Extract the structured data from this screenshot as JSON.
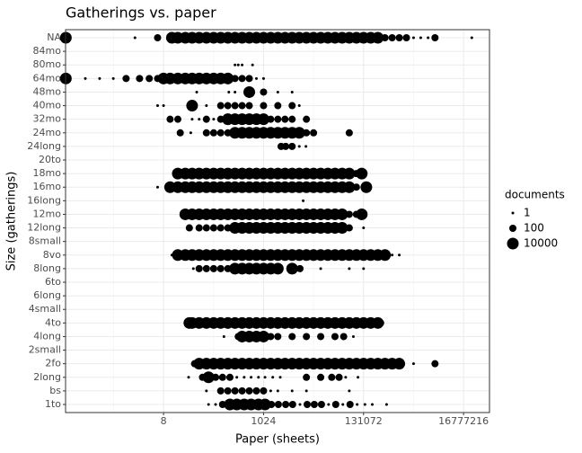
{
  "chart_data": {
    "type": "dotplot",
    "title": "Gatherings vs. paper",
    "x_label": "Paper (sheets)",
    "y_label": "Size (gatherings)",
    "xlim": [
      0.069,
      59000000
    ],
    "xticks": [
      8,
      1024,
      131072,
      16777216
    ],
    "log_x": true,
    "grid": true,
    "color": "#000000",
    "size_legend": {
      "title": "documents",
      "values": [
        1,
        100,
        10000
      ]
    },
    "rows": [
      {
        "category": "NA",
        "x": [
          0.07,
          2,
          6,
          12,
          16,
          23,
          32,
          45,
          64,
          91,
          128,
          181,
          256,
          362,
          512,
          724,
          1024,
          1448,
          2048,
          2896,
          4096,
          5793,
          8192,
          11585,
          16384,
          23170,
          32768,
          46341,
          65536,
          92682,
          131072,
          185364,
          262144,
          370728,
          524288,
          741455,
          1048576,
          1482910,
          2097152,
          3000000,
          4194304,
          25000000
        ],
        "documents": [
          10000,
          1,
          100,
          10000,
          10000,
          10000,
          10000,
          10000,
          10000,
          10000,
          10000,
          10000,
          10000,
          10000,
          10000,
          10000,
          10000,
          10000,
          10000,
          10000,
          10000,
          10000,
          10000,
          10000,
          10000,
          10000,
          10000,
          10000,
          10000,
          10000,
          10000,
          10000,
          10000,
          100,
          100,
          100,
          100,
          1,
          1,
          1,
          100,
          1
        ]
      },
      {
        "category": "84mo",
        "x": [],
        "documents": []
      },
      {
        "category": "80mo",
        "x": [
          256,
          300,
          362,
          600
        ],
        "documents": [
          1,
          1,
          1,
          1
        ]
      },
      {
        "category": "64mo",
        "x": [
          0.07,
          0.18,
          0.36,
          0.7,
          1.3,
          2.5,
          4,
          6,
          8,
          11,
          16,
          23,
          32,
          45,
          64,
          91,
          128,
          181,
          256,
          362,
          512,
          724,
          1024
        ],
        "documents": [
          10000,
          1,
          1,
          1,
          100,
          100,
          100,
          100,
          10000,
          10000,
          10000,
          10000,
          10000,
          10000,
          10000,
          10000,
          10000,
          10000,
          100,
          100,
          100,
          1,
          1
        ]
      },
      {
        "category": "48mo",
        "x": [
          40,
          190,
          256,
          512,
          1024,
          2048,
          4096
        ],
        "documents": [
          1,
          1,
          1,
          10000,
          100,
          1,
          1
        ]
      },
      {
        "category": "40mo",
        "x": [
          6,
          8,
          32,
          64,
          128,
          181,
          256,
          362,
          512,
          1024,
          2048,
          4096,
          5793
        ],
        "documents": [
          1,
          1,
          10000,
          1,
          100,
          100,
          100,
          100,
          100,
          100,
          100,
          100,
          1
        ]
      },
      {
        "category": "32mo",
        "x": [
          11,
          16,
          32,
          45,
          64,
          91,
          128,
          181,
          256,
          362,
          512,
          724,
          1024,
          1448,
          2048,
          2896,
          4096,
          8192
        ],
        "documents": [
          100,
          100,
          1,
          1,
          100,
          1,
          100,
          10000,
          10000,
          10000,
          10000,
          10000,
          10000,
          100,
          100,
          100,
          100,
          100
        ]
      },
      {
        "category": "24mo",
        "x": [
          18,
          30,
          64,
          91,
          128,
          181,
          256,
          362,
          512,
          724,
          1024,
          1448,
          2048,
          2896,
          4096,
          5793,
          8192,
          11585,
          65536
        ],
        "documents": [
          100,
          1,
          100,
          100,
          100,
          100,
          10000,
          10000,
          10000,
          10000,
          10000,
          10000,
          10000,
          10000,
          10000,
          10000,
          100,
          100,
          100
        ]
      },
      {
        "category": "24long",
        "x": [
          2400,
          3000,
          4096,
          5793,
          8000
        ],
        "documents": [
          100,
          100,
          100,
          1,
          1
        ]
      },
      {
        "category": "20to",
        "x": [],
        "documents": []
      },
      {
        "category": "18mo",
        "x": [
          16,
          23,
          32,
          45,
          64,
          91,
          128,
          181,
          256,
          362,
          512,
          724,
          1024,
          1448,
          2048,
          2896,
          4096,
          5793,
          8192,
          11585,
          16384,
          23170,
          32768,
          46341,
          65536,
          92682,
          120000
        ],
        "documents": [
          10000,
          10000,
          10000,
          10000,
          10000,
          10000,
          10000,
          10000,
          10000,
          10000,
          10000,
          10000,
          10000,
          10000,
          10000,
          10000,
          10000,
          10000,
          10000,
          10000,
          10000,
          10000,
          10000,
          10000,
          10000,
          100,
          10000
        ]
      },
      {
        "category": "16mo",
        "x": [
          6,
          11,
          16,
          23,
          32,
          45,
          64,
          91,
          128,
          181,
          256,
          362,
          512,
          724,
          1024,
          1448,
          2048,
          2896,
          4096,
          5793,
          8192,
          11585,
          16384,
          23170,
          32768,
          46341,
          65536,
          92682,
          150000
        ],
        "documents": [
          1,
          10000,
          10000,
          10000,
          10000,
          10000,
          10000,
          10000,
          10000,
          10000,
          10000,
          10000,
          10000,
          10000,
          10000,
          10000,
          10000,
          10000,
          10000,
          10000,
          10000,
          10000,
          10000,
          10000,
          10000,
          10000,
          10000,
          100,
          10000
        ]
      },
      {
        "category": "16long",
        "x": [
          7000
        ],
        "documents": [
          1
        ]
      },
      {
        "category": "12mo",
        "x": [
          23,
          32,
          45,
          64,
          91,
          128,
          181,
          256,
          362,
          512,
          724,
          1024,
          1448,
          2048,
          2896,
          4096,
          5793,
          8192,
          11585,
          16384,
          23170,
          32768,
          46341,
          65536,
          92682,
          120000
        ],
        "documents": [
          10000,
          10000,
          10000,
          10000,
          10000,
          10000,
          10000,
          10000,
          10000,
          10000,
          10000,
          10000,
          10000,
          10000,
          10000,
          10000,
          10000,
          10000,
          10000,
          10000,
          10000,
          10000,
          10000,
          100,
          100,
          10000
        ]
      },
      {
        "category": "12long",
        "x": [
          28,
          45,
          64,
          91,
          128,
          181,
          256,
          362,
          512,
          724,
          1024,
          1448,
          2048,
          2896,
          4096,
          5793,
          8192,
          11585,
          16384,
          23170,
          32768,
          46341,
          65536,
          131072
        ],
        "documents": [
          100,
          100,
          100,
          100,
          100,
          100,
          10000,
          10000,
          10000,
          10000,
          10000,
          10000,
          10000,
          10000,
          10000,
          10000,
          10000,
          10000,
          10000,
          10000,
          10000,
          10000,
          100,
          1
        ]
      },
      {
        "category": "8small",
        "x": [],
        "documents": []
      },
      {
        "category": "8vo",
        "x": [
          12,
          16,
          23,
          32,
          45,
          64,
          91,
          128,
          181,
          256,
          362,
          512,
          724,
          1024,
          1448,
          2048,
          2896,
          4096,
          5793,
          8192,
          11585,
          16384,
          23170,
          32768,
          46341,
          65536,
          92682,
          131072,
          185364,
          262144,
          370728,
          524288,
          741455
        ],
        "documents": [
          1,
          10000,
          10000,
          10000,
          10000,
          10000,
          10000,
          10000,
          10000,
          10000,
          10000,
          10000,
          10000,
          10000,
          10000,
          10000,
          10000,
          10000,
          10000,
          10000,
          10000,
          10000,
          10000,
          10000,
          10000,
          10000,
          10000,
          10000,
          10000,
          10000,
          10000,
          1,
          1
        ]
      },
      {
        "category": "8long",
        "x": [
          34,
          45,
          64,
          91,
          128,
          181,
          256,
          362,
          512,
          724,
          1024,
          1448,
          2048,
          4096,
          6000,
          16384,
          65536,
          131072
        ],
        "documents": [
          1,
          100,
          100,
          100,
          100,
          100,
          10000,
          10000,
          10000,
          10000,
          10000,
          10000,
          10000,
          10000,
          100,
          1,
          1,
          1
        ]
      },
      {
        "category": "6to",
        "x": [],
        "documents": []
      },
      {
        "category": "6long",
        "x": [],
        "documents": []
      },
      {
        "category": "4small",
        "x": [],
        "documents": []
      },
      {
        "category": "4to",
        "x": [
          28,
          32,
          45,
          64,
          91,
          128,
          181,
          256,
          362,
          512,
          724,
          1024,
          1448,
          2048,
          2896,
          4096,
          5793,
          8192,
          11585,
          16384,
          23170,
          32768,
          46341,
          65536,
          92682,
          131072,
          185364,
          262144,
          300000
        ],
        "documents": [
          10000,
          10000,
          10000,
          10000,
          10000,
          10000,
          10000,
          10000,
          10000,
          10000,
          10000,
          10000,
          10000,
          10000,
          10000,
          10000,
          10000,
          10000,
          10000,
          10000,
          10000,
          10000,
          10000,
          10000,
          10000,
          10000,
          10000,
          10000,
          100
        ]
      },
      {
        "category": "4long",
        "x": [
          150,
          300,
          362,
          512,
          724,
          1024,
          1448,
          2048,
          4096,
          8192,
          16384,
          32768,
          50000,
          80000
        ],
        "documents": [
          1,
          100,
          10000,
          10000,
          10000,
          10000,
          100,
          100,
          100,
          100,
          100,
          100,
          100,
          1
        ]
      },
      {
        "category": "2small",
        "x": [],
        "documents": []
      },
      {
        "category": "2fo",
        "x": [
          36,
          45,
          64,
          91,
          128,
          181,
          256,
          362,
          512,
          724,
          1024,
          1448,
          2048,
          2896,
          4096,
          5793,
          8192,
          11585,
          16384,
          23170,
          32768,
          46341,
          65536,
          92682,
          131072,
          185364,
          262144,
          370728,
          524288,
          741455,
          1482910,
          4194304
        ],
        "documents": [
          100,
          10000,
          10000,
          10000,
          10000,
          10000,
          10000,
          10000,
          10000,
          10000,
          10000,
          10000,
          10000,
          10000,
          10000,
          10000,
          10000,
          10000,
          10000,
          10000,
          10000,
          10000,
          10000,
          10000,
          10000,
          10000,
          10000,
          10000,
          10000,
          10000,
          1,
          100
        ]
      },
      {
        "category": "2long",
        "x": [
          27,
          53,
          71,
          100,
          140,
          200,
          280,
          400,
          560,
          800,
          1100,
          1600,
          2300,
          8192,
          16384,
          28000,
          40000,
          55000,
          100000
        ],
        "documents": [
          1,
          100,
          10000,
          100,
          100,
          100,
          1,
          1,
          1,
          1,
          1,
          1,
          1,
          100,
          100,
          100,
          100,
          1,
          1
        ]
      },
      {
        "category": "bs",
        "x": [
          64,
          128,
          181,
          256,
          362,
          512,
          724,
          1024,
          1448,
          2048,
          4096,
          8192,
          65536
        ],
        "documents": [
          1,
          100,
          100,
          100,
          100,
          100,
          100,
          100,
          1,
          1,
          1,
          1,
          1
        ]
      },
      {
        "category": "1to",
        "x": [
          71,
          100,
          140,
          200,
          280,
          400,
          560,
          800,
          1100,
          1500,
          2100,
          3000,
          4200,
          6000,
          8500,
          12000,
          17000,
          24000,
          34000,
          48000,
          68000,
          96000,
          140000,
          200000,
          400000
        ],
        "documents": [
          1,
          1,
          100,
          10000,
          10000,
          10000,
          10000,
          10000,
          10000,
          100,
          100,
          100,
          100,
          1,
          100,
          100,
          100,
          1,
          100,
          1,
          100,
          1,
          1,
          1,
          1
        ]
      }
    ]
  }
}
